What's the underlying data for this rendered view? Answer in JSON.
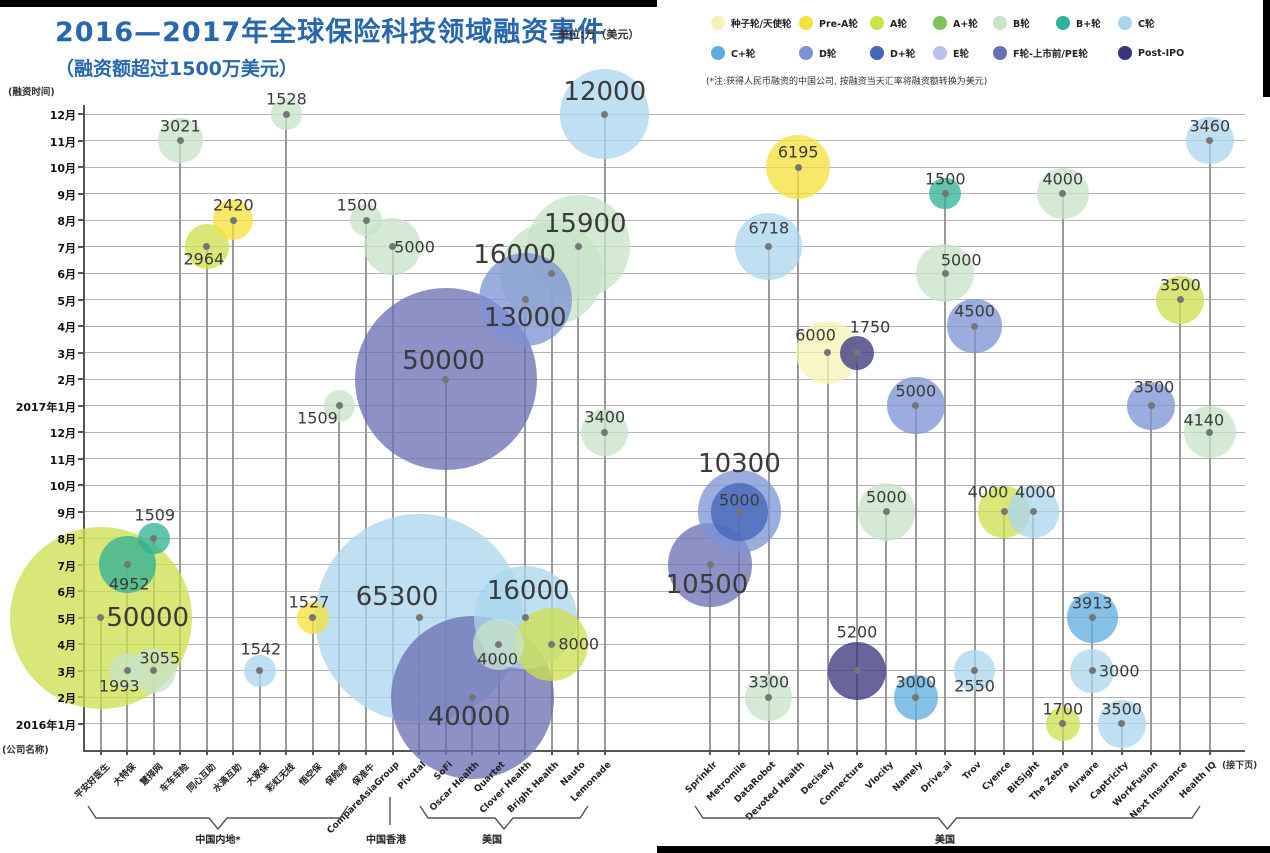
{
  "title": {
    "text": "2016—2017年全球保险科技领域融资事件",
    "subtitle": "（融资额超过1500万美元）",
    "unit": "单位:万（美元）"
  },
  "note": "(*注:获得人民币融资的中国公司, 按融资当天汇率将融资额转换为美元)",
  "axes": {
    "y_caption": "(融资时间)",
    "x_caption": "(公司名称)",
    "next_page": "(接下页)"
  },
  "legend": {
    "rows": [
      [
        {
          "key": "seed",
          "label": "种子轮/天使轮",
          "color": "#f6f2b4"
        },
        {
          "key": "preA",
          "label": "Pre-A轮",
          "color": "#f4e13b"
        },
        {
          "key": "A",
          "label": "A轮",
          "color": "#cde04e"
        },
        {
          "key": "Aplus",
          "label": "A+轮",
          "color": "#7dc355"
        },
        {
          "key": "B",
          "label": "B轮",
          "color": "#c8e3c6"
        },
        {
          "key": "Bplus",
          "label": "B+轮",
          "color": "#2fb296"
        },
        {
          "key": "C",
          "label": "C轮",
          "color": "#a9d6ee"
        }
      ],
      [
        {
          "key": "Cplus",
          "label": "C+轮",
          "color": "#5fade0"
        },
        {
          "key": "D",
          "label": "D轮",
          "color": "#7b92d5"
        },
        {
          "key": "Dplus",
          "label": "D+轮",
          "color": "#4565b8"
        },
        {
          "key": "E",
          "label": "E轮",
          "color": "#b9bfe6"
        },
        {
          "key": "F",
          "label": "F轮-上市前/PE轮",
          "color": "#6a6eb3"
        },
        {
          "key": "postIPO",
          "label": "Post-IPO",
          "color": "#37357d"
        }
      ]
    ]
  },
  "chart_data": {
    "type": "scatter",
    "title": "2016—2017年全球保险科技领域融资事件（融资额超过1500万美元）",
    "value_unit": "万美元",
    "size_rule": "bubble area proportional to value",
    "months": [
      "12月",
      "11月",
      "10月",
      "9月",
      "8月",
      "7月",
      "6月",
      "5月",
      "4月",
      "3月",
      "2月",
      "2017年1月",
      "12月",
      "11月",
      "10月",
      "9月",
      "8月",
      "7月",
      "6月",
      "5月",
      "4月",
      "3月",
      "2月",
      "2016年1月"
    ],
    "company_groups": [
      {
        "label": "中国内地*"
      },
      {
        "label": "中国香港"
      },
      {
        "label": "美国"
      },
      {
        "label": "美国"
      }
    ],
    "companies": [
      {
        "name": "平安好医生",
        "group": 0
      },
      {
        "name": "大特保",
        "group": 0
      },
      {
        "name": "慧择网",
        "group": 0
      },
      {
        "name": "车车车险",
        "group": 0
      },
      {
        "name": "同心互助",
        "group": 0
      },
      {
        "name": "水滴互助",
        "group": 0
      },
      {
        "name": "大家保",
        "group": 0
      },
      {
        "name": "彩虹无线",
        "group": 0
      },
      {
        "name": "悟空保",
        "group": 0
      },
      {
        "name": "保险师",
        "group": 0
      },
      {
        "name": "保准牛",
        "group": 0
      },
      {
        "name": "CompareAsiaGroup",
        "group": 1
      },
      {
        "name": "Pivotal",
        "group": 2
      },
      {
        "name": "SoFi",
        "group": 2
      },
      {
        "name": "Oscar Health",
        "group": 2
      },
      {
        "name": "Quartet",
        "group": 2
      },
      {
        "name": "Clover Health",
        "group": 2
      },
      {
        "name": "Bright Health",
        "group": 2
      },
      {
        "name": "Nauto",
        "group": 2
      },
      {
        "name": "Lemonade",
        "group": 2
      },
      {
        "name": "Sprinklr",
        "group": 3
      },
      {
        "name": "Metromile",
        "group": 3
      },
      {
        "name": "DataRobot",
        "group": 3
      },
      {
        "name": "Devoted Health",
        "group": 3
      },
      {
        "name": "Decisely",
        "group": 3
      },
      {
        "name": "Connecture",
        "group": 3
      },
      {
        "name": "Vlocity",
        "group": 3
      },
      {
        "name": "Namely",
        "group": 3
      },
      {
        "name": "Drive.ai",
        "group": 3
      },
      {
        "name": "Trov",
        "group": 3
      },
      {
        "name": "Cyence",
        "group": 3
      },
      {
        "name": "BitSight",
        "group": 3
      },
      {
        "name": "The Zebra",
        "group": 3
      },
      {
        "name": "Airware",
        "group": 3
      },
      {
        "name": "Captricity",
        "group": 3
      },
      {
        "name": "WorkFusion",
        "group": 3
      },
      {
        "name": "Next Insurance",
        "group": 3
      },
      {
        "name": "Health IQ",
        "group": 3
      }
    ],
    "events": [
      {
        "company": "彩虹无线",
        "date": "2017年12月",
        "month_index": 0,
        "value": 1528,
        "round": "B"
      },
      {
        "company": "Lemonade",
        "date": "2017年12月",
        "month_index": 0,
        "value": 12000,
        "round": "C"
      },
      {
        "company": "车车车险",
        "date": "2017年11月",
        "month_index": 1,
        "value": 3021,
        "round": "B"
      },
      {
        "company": "Health IQ",
        "date": "2017年11月",
        "month_index": 1,
        "value": 3460,
        "round": "C"
      },
      {
        "company": "Devoted Health",
        "date": "2017年10月",
        "month_index": 2,
        "value": 6195,
        "round": "preA"
      },
      {
        "company": "Drive.ai",
        "date": "2017年9月",
        "month_index": 3,
        "value": 1500,
        "round": "Bplus"
      },
      {
        "company": "The Zebra",
        "date": "2017年9月",
        "month_index": 3,
        "value": 4000,
        "round": "B"
      },
      {
        "company": "水滴互助",
        "date": "2017年8月",
        "month_index": 4,
        "value": 2420,
        "round": "preA"
      },
      {
        "company": "保准牛",
        "date": "2017年8月",
        "month_index": 4,
        "value": 1500,
        "round": "B"
      },
      {
        "company": "同心互助",
        "date": "2017年7月",
        "month_index": 5,
        "value": 2964,
        "round": "A"
      },
      {
        "company": "CompareAsiaGroup",
        "date": "2017年7月",
        "month_index": 5,
        "value": 5000,
        "round": "B"
      },
      {
        "company": "DataRobot",
        "date": "2017年7月",
        "month_index": 5,
        "value": 6718,
        "round": "C"
      },
      {
        "company": "Nauto",
        "date": "2017年7月",
        "month_index": 5,
        "value": 15900,
        "round": "B"
      },
      {
        "company": "Bright Health",
        "date": "2017年6月",
        "month_index": 6,
        "value": 16000,
        "round": "B"
      },
      {
        "company": "Drive.ai",
        "date": "2017年6月",
        "month_index": 6,
        "value": 5000,
        "round": "B"
      },
      {
        "company": "Clover Health",
        "date": "2017年5月",
        "month_index": 7,
        "value": 13000,
        "round": "D"
      },
      {
        "company": "Next Insurance",
        "date": "2017年5月",
        "month_index": 7,
        "value": 3500,
        "round": "A"
      },
      {
        "company": "Trov",
        "date": "2017年4月",
        "month_index": 8,
        "value": 4500,
        "round": "D"
      },
      {
        "company": "Decisely",
        "date": "2017年3月",
        "month_index": 9,
        "value": 6000,
        "round": "seed"
      },
      {
        "company": "Connecture",
        "date": "2017年3月",
        "month_index": 9,
        "value": 1750,
        "round": "postIPO"
      },
      {
        "company": "SoFi",
        "date": "2017年2月",
        "month_index": 10,
        "value": 50000,
        "round": "F"
      },
      {
        "company": "Namely",
        "date": "2017年1月",
        "month_index": 11,
        "value": 5000,
        "round": "D"
      },
      {
        "company": "保险师",
        "date": "2017年1月",
        "month_index": 11,
        "value": 1509,
        "round": "B"
      },
      {
        "company": "WorkFusion",
        "date": "2017年1月",
        "month_index": 11,
        "value": 3500,
        "round": "D"
      },
      {
        "company": "Lemonade",
        "date": "2016年12月",
        "month_index": 12,
        "value": 3400,
        "round": "B"
      },
      {
        "company": "Health IQ",
        "date": "2016年12月",
        "month_index": 12,
        "value": 4140,
        "round": "B"
      },
      {
        "company": "Metromile",
        "date": "2016年9月",
        "month_index": 15,
        "value": 10300,
        "round": "D"
      },
      {
        "company": "Metromile",
        "date": "2016年9月",
        "month_index": 15,
        "value": 5000,
        "round": "Dplus"
      },
      {
        "company": "Vlocity",
        "date": "2016年9月",
        "month_index": 15,
        "value": 5000,
        "round": "B"
      },
      {
        "company": "Cyence",
        "date": "2016年9月",
        "month_index": 15,
        "value": 4000,
        "round": "A"
      },
      {
        "company": "BitSight",
        "date": "2016年9月",
        "month_index": 15,
        "value": 4000,
        "round": "C"
      },
      {
        "company": "慧择网",
        "date": "2016年8月",
        "month_index": 16,
        "value": 1509,
        "round": "Bplus"
      },
      {
        "company": "大特保",
        "date": "2016年7月",
        "month_index": 17,
        "value": 4952,
        "round": "Bplus"
      },
      {
        "company": "Sprinklr",
        "date": "2016年7月",
        "month_index": 17,
        "value": 10500,
        "round": "F"
      },
      {
        "company": "平安好医生",
        "date": "2016年5月",
        "month_index": 19,
        "value": 50000,
        "round": "A"
      },
      {
        "company": "悟空保",
        "date": "2016年5月",
        "month_index": 19,
        "value": 1527,
        "round": "preA"
      },
      {
        "company": "Pivotal",
        "date": "2016年5月",
        "month_index": 19,
        "value": 65300,
        "round": "C"
      },
      {
        "company": "Clover Health",
        "date": "2016年5月",
        "month_index": 19,
        "value": 16000,
        "round": "C"
      },
      {
        "company": "Airware",
        "date": "2016年5月",
        "month_index": 19,
        "value": 3913,
        "round": "Cplus"
      },
      {
        "company": "Quartet",
        "date": "2016年4月",
        "month_index": 20,
        "value": 4000,
        "round": "B"
      },
      {
        "company": "Bright Health",
        "date": "2016年4月",
        "month_index": 20,
        "value": 8000,
        "round": "A"
      },
      {
        "company": "大特保",
        "date": "2016年3月",
        "month_index": 21,
        "value": 1993,
        "round": "B"
      },
      {
        "company": "慧择网",
        "date": "2016年3月",
        "month_index": 21,
        "value": 3055,
        "round": "B"
      },
      {
        "company": "大家保",
        "date": "2016年3月",
        "month_index": 21,
        "value": 1542,
        "round": "C"
      },
      {
        "company": "Connecture",
        "date": "2016年3月",
        "month_index": 21,
        "value": 5200,
        "round": "postIPO"
      },
      {
        "company": "Trov",
        "date": "2016年3月",
        "month_index": 21,
        "value": 2550,
        "round": "C"
      },
      {
        "company": "Airware",
        "date": "2016年3月",
        "month_index": 21,
        "value": 3000,
        "round": "C"
      },
      {
        "company": "Oscar Health",
        "date": "2016年2月",
        "month_index": 22,
        "value": 40000,
        "round": "F"
      },
      {
        "company": "DataRobot",
        "date": "2016年2月",
        "month_index": 22,
        "value": 3300,
        "round": "B"
      },
      {
        "company": "Namely",
        "date": "2016年2月",
        "month_index": 22,
        "value": 3000,
        "round": "Cplus"
      },
      {
        "company": "The Zebra",
        "date": "2016年1月",
        "month_index": 23,
        "value": 1700,
        "round": "A"
      },
      {
        "company": "Captricity",
        "date": "2016年1月",
        "month_index": 23,
        "value": 3500,
        "round": "C"
      }
    ]
  }
}
